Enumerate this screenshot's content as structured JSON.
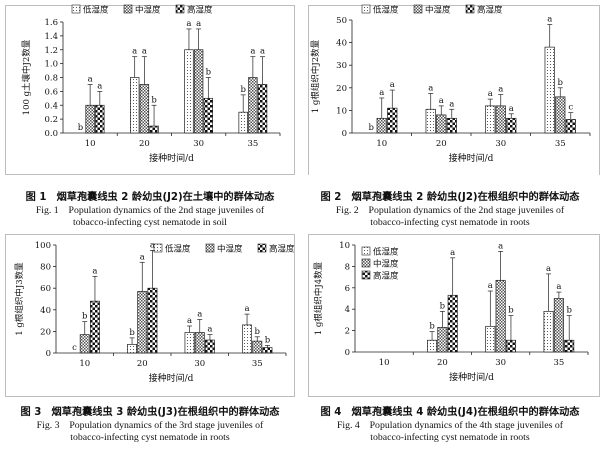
{
  "legend": [
    "低湿度",
    "中湿度",
    "高湿度"
  ],
  "chart_data": [
    {
      "type": "bar",
      "ylabel": "100 g土壤中J2数量",
      "xlabel": "接种时间/d",
      "categories": [
        "10",
        "20",
        "30",
        "35"
      ],
      "ylim": [
        0,
        1.6
      ],
      "yticks": [
        "0.0",
        "0.2",
        "0.4",
        "0.6",
        "0.8",
        "1.0",
        "1.2",
        "1.4",
        "1.6"
      ],
      "legend_position": "top",
      "series": [
        {
          "name": "低湿度",
          "values": [
            0,
            0.8,
            1.2,
            0.3
          ],
          "errors": [
            0,
            0.3,
            0.3,
            0.25
          ],
          "letters": [
            "b",
            "a",
            "a",
            "b"
          ]
        },
        {
          "name": "中湿度",
          "values": [
            0.4,
            0.7,
            1.2,
            0.8
          ],
          "errors": [
            0.3,
            0.4,
            0.3,
            0.3
          ],
          "letters": [
            "a",
            "a",
            "a",
            "a"
          ]
        },
        {
          "name": "高湿度",
          "values": [
            0.4,
            0.1,
            0.5,
            0.7
          ],
          "errors": [
            0.2,
            0.3,
            0.3,
            0.4
          ],
          "letters": [
            "a",
            "b",
            "b",
            "a"
          ]
        }
      ]
    },
    {
      "type": "bar",
      "ylabel": "1 g根组织中J2数量",
      "xlabel": "接种时间/d",
      "categories": [
        "10",
        "20",
        "30",
        "35"
      ],
      "ylim": [
        0,
        50
      ],
      "yticks": [
        "0",
        "10",
        "20",
        "30",
        "40",
        "50"
      ],
      "legend_position": "top",
      "series": [
        {
          "name": "低湿度",
          "values": [
            0,
            10.5,
            12,
            38
          ],
          "errors": [
            0,
            7,
            3,
            10
          ],
          "letters": [
            "b",
            "a",
            "a",
            "a"
          ]
        },
        {
          "name": "中湿度",
          "values": [
            6.5,
            8,
            12,
            16
          ],
          "errors": [
            9,
            4,
            5,
            4
          ],
          "letters": [
            "a",
            "a",
            "a",
            "b"
          ]
        },
        {
          "name": "高湿度",
          "values": [
            11,
            6.5,
            6.5,
            6
          ],
          "errors": [
            8,
            4,
            2,
            3
          ],
          "letters": [
            "a",
            "a",
            "a",
            "c"
          ]
        }
      ]
    },
    {
      "type": "bar",
      "ylabel": "1 g根组织中J3数量",
      "xlabel": "接种时间/d",
      "categories": [
        "10",
        "20",
        "30",
        "35"
      ],
      "ylim": [
        0,
        100
      ],
      "yticks": [
        "0",
        "20",
        "40",
        "60",
        "80",
        "100"
      ],
      "legend_position": "top-right",
      "series": [
        {
          "name": "低湿度",
          "values": [
            0,
            8,
            19,
            26
          ],
          "errors": [
            0,
            6,
            6,
            10
          ],
          "letters": [
            "c",
            "b",
            "a",
            "a"
          ]
        },
        {
          "name": "中湿度",
          "values": [
            17,
            57,
            19,
            11
          ],
          "errors": [
            12,
            27,
            12,
            4
          ],
          "letters": [
            "b",
            "a",
            "a",
            "b"
          ]
        },
        {
          "name": "高湿度",
          "values": [
            48,
            60,
            12,
            5
          ],
          "errors": [
            23,
            35,
            5,
            2
          ],
          "letters": [
            "a",
            "a",
            "a",
            "b"
          ]
        }
      ]
    },
    {
      "type": "bar",
      "ylabel": "1 g根组织中J4数量",
      "xlabel": "接种时间/d",
      "categories": [
        "10",
        "20",
        "30",
        "35"
      ],
      "ylim": [
        0,
        10
      ],
      "yticks": [
        "0",
        "2",
        "4",
        "6",
        "8",
        "10"
      ],
      "legend_position": "top-left",
      "series": [
        {
          "name": "低湿度",
          "values": [
            0,
            1.1,
            2.4,
            3.8
          ],
          "errors": [
            0,
            0.8,
            3.3,
            3.5
          ],
          "letters": [
            "",
            "b",
            "a",
            "a"
          ]
        },
        {
          "name": "中湿度",
          "values": [
            0,
            2.3,
            6.7,
            5.0
          ],
          "errors": [
            0,
            1.5,
            2.7,
            0.6
          ],
          "letters": [
            "",
            "b",
            "a",
            "a"
          ]
        },
        {
          "name": "高湿度",
          "values": [
            0,
            5.3,
            1.1,
            1.1
          ],
          "errors": [
            0,
            3.5,
            2.3,
            2.3
          ],
          "letters": [
            "",
            "a",
            "b",
            "b"
          ]
        }
      ]
    }
  ],
  "captions": [
    {
      "cn": "图 1　烟草孢囊线虫 2 龄幼虫(J2)在土壤中的群体动态",
      "en1": "Fig. 1　Population dynamics of the 2nd stage juveniles of",
      "en2": "tobacco-infecting cyst nematode in soil"
    },
    {
      "cn": "图 2　烟草孢囊线虫 2 龄幼虫(J2)在根组织中的群体动态",
      "en1": "Fig. 2　Population dynamics of the 2nd stage juveniles of",
      "en2": "tobacco-infecting cyst nematode in roots"
    },
    {
      "cn": "图 3　烟草孢囊线虫 3 龄幼虫(J3)在根组织中的群体动态",
      "en1": "Fig. 3　Population dynamics of the 3rd stage juveniles of",
      "en2": "tobacco-infecting cyst nematode in roots"
    },
    {
      "cn": "图 4　烟草孢囊线虫 4 龄幼虫(J4)在根组织中的群体动态",
      "en1": "Fig. 4　Population dynamics of the 4th stage juveniles of",
      "en2": "tobacco-infecting cyst nematode in roots"
    }
  ]
}
